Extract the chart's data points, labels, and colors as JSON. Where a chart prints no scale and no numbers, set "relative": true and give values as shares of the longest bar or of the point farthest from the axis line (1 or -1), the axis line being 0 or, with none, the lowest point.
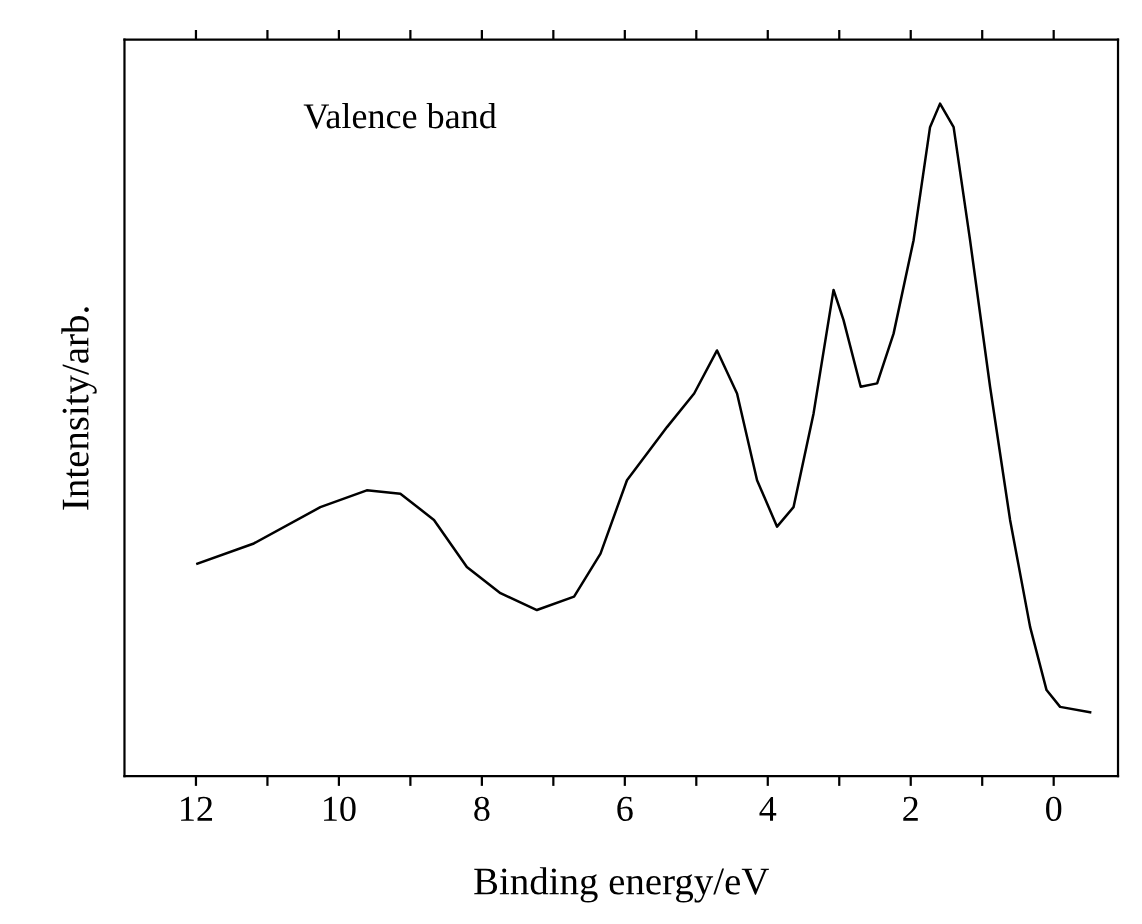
{
  "chart_data": {
    "type": "line",
    "xlabel": "Binding energy/eV",
    "ylabel": "Intensity/arb.",
    "annotations": [
      "Valence band"
    ],
    "relative": true,
    "tick_labels": "x",
    "marker": "none",
    "line_style": "solid",
    "xlim": [
      13,
      -0.9
    ],
    "xticks": [
      12,
      {
        "value": 11,
        "label": null
      },
      10,
      {
        "value": 9,
        "label": null
      },
      8,
      {
        "value": 7,
        "label": null
      },
      6,
      {
        "value": 5,
        "label": null
      },
      4,
      {
        "value": 3,
        "label": null
      },
      2,
      {
        "value": 1,
        "label": null
      },
      0
    ],
    "series": [
      {
        "color": "#000000",
        "x": [
          11.98,
          11.19,
          10.26,
          9.61,
          9.14,
          8.67,
          8.21,
          7.74,
          7.23,
          6.71,
          6.34,
          5.97,
          5.41,
          5.03,
          4.71,
          4.43,
          4.15,
          3.87,
          3.64,
          3.36,
          3.08,
          2.94,
          2.7,
          2.47,
          2.24,
          1.96,
          1.73,
          1.59,
          1.4,
          1.17,
          0.89,
          0.61,
          0.33,
          0.1,
          -0.09,
          -0.51
        ],
        "values": [
          0.316,
          0.346,
          0.4,
          0.425,
          0.42,
          0.381,
          0.311,
          0.272,
          0.247,
          0.267,
          0.331,
          0.44,
          0.519,
          0.569,
          0.633,
          0.569,
          0.44,
          0.371,
          0.4,
          0.539,
          0.723,
          0.678,
          0.579,
          0.584,
          0.658,
          0.797,
          0.965,
          1.0,
          0.965,
          0.797,
          0.579,
          0.381,
          0.222,
          0.128,
          0.103,
          0.095
        ]
      }
    ]
  }
}
